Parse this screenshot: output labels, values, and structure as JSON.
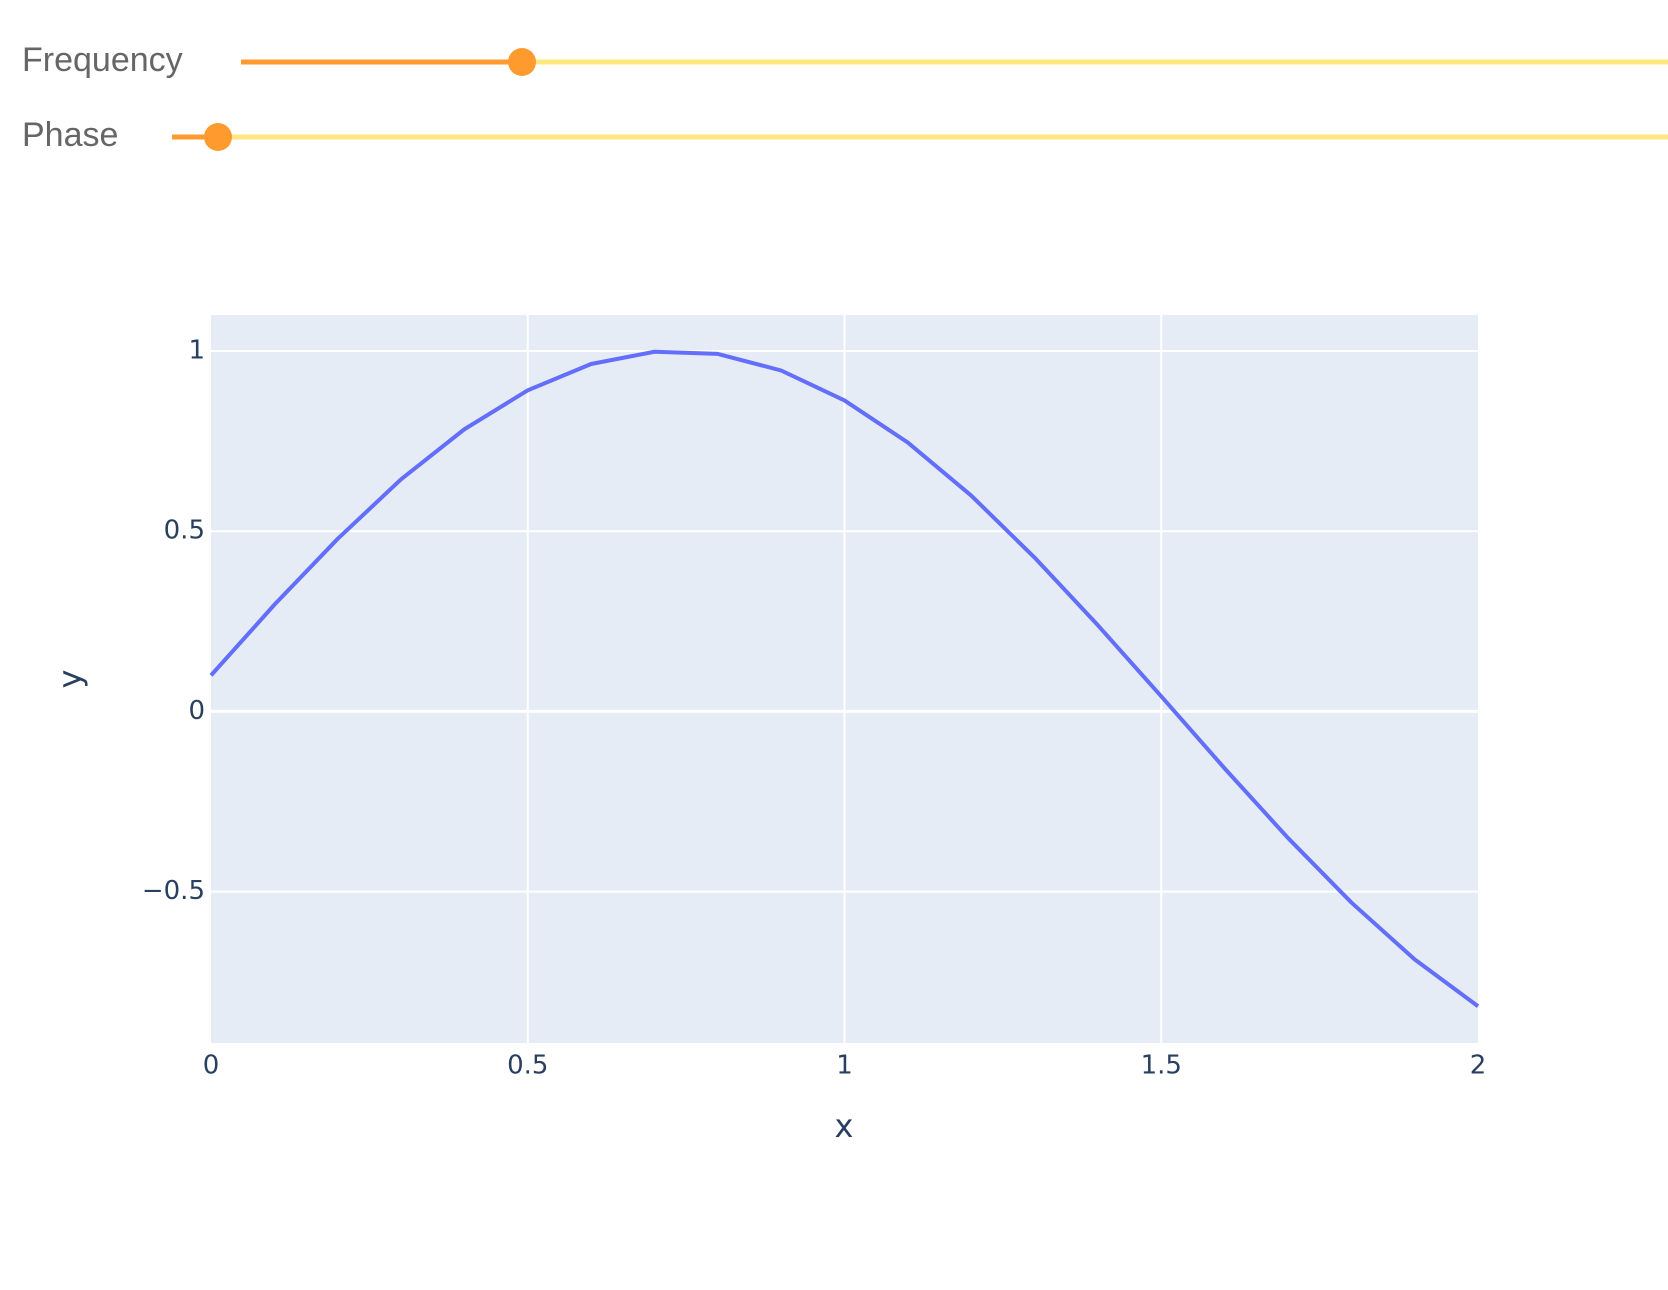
{
  "controls": [
    {
      "label": "Frequency"
    },
    {
      "label": "Phase"
    }
  ],
  "chart_data": {
    "type": "line",
    "x_label": "x",
    "y_label": "y",
    "x": [
      0,
      0.1,
      0.2,
      0.3,
      0.4,
      0.5,
      0.6,
      0.7,
      0.8,
      0.9,
      1,
      1.1,
      1.2,
      1.3,
      1.4,
      1.5,
      1.6,
      1.7,
      1.8,
      1.9,
      2
    ],
    "values": [
      0.1,
      0.296,
      0.479,
      0.644,
      0.783,
      0.891,
      0.964,
      0.998,
      0.992,
      0.946,
      0.863,
      0.746,
      0.599,
      0.427,
      0.239,
      0.042,
      -0.158,
      -0.351,
      -0.53,
      -0.688,
      -0.818
    ],
    "color": "#636efa",
    "xlim": [
      0,
      2
    ],
    "xticks": [
      0,
      0.5,
      1,
      1.5,
      2
    ],
    "ylim": [
      -0.92,
      1.1
    ],
    "yticks": [
      {
        "value": -0.5,
        "label": "−0.5"
      },
      0,
      0.5,
      1
    ],
    "grid": true
  }
}
